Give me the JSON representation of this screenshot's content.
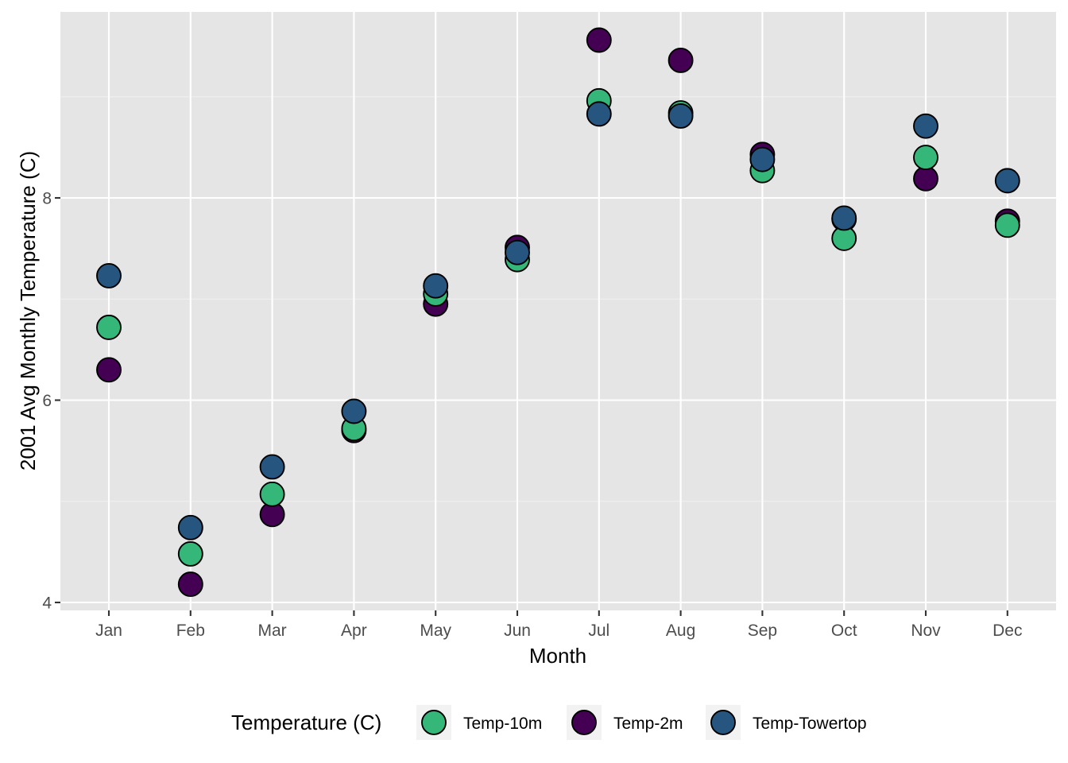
{
  "chart_data": {
    "type": "scatter",
    "title": "",
    "xlabel": "Month",
    "ylabel": "2001 Avg Monthly Temperature (C)",
    "categories": [
      "Jan",
      "Feb",
      "Mar",
      "Apr",
      "May",
      "Jun",
      "Jul",
      "Aug",
      "Sep",
      "Oct",
      "Nov",
      "Dec"
    ],
    "y_ticks": [
      4,
      6,
      8
    ],
    "ylim": [
      3.93,
      9.85
    ],
    "grid": true,
    "legend": {
      "title": "Temperature (C)",
      "position": "bottom"
    },
    "series": [
      {
        "name": "Temp-2m",
        "color": "#440154",
        "values": [
          6.3,
          4.18,
          4.87,
          5.7,
          6.95,
          7.51,
          9.56,
          9.36,
          8.43,
          7.79,
          8.19,
          7.77
        ]
      },
      {
        "name": "Temp-10m",
        "color": "#35b779",
        "values": [
          6.72,
          4.48,
          5.07,
          5.72,
          7.05,
          7.39,
          8.96,
          8.84,
          8.27,
          7.6,
          8.4,
          7.73
        ]
      },
      {
        "name": "Temp-Towertop",
        "color": "#26567f",
        "values": [
          7.23,
          4.74,
          5.34,
          5.89,
          7.13,
          7.46,
          8.83,
          8.81,
          8.38,
          7.8,
          8.71,
          8.17
        ]
      }
    ],
    "legend_order": [
      "Temp-10m",
      "Temp-2m",
      "Temp-Towertop"
    ]
  }
}
